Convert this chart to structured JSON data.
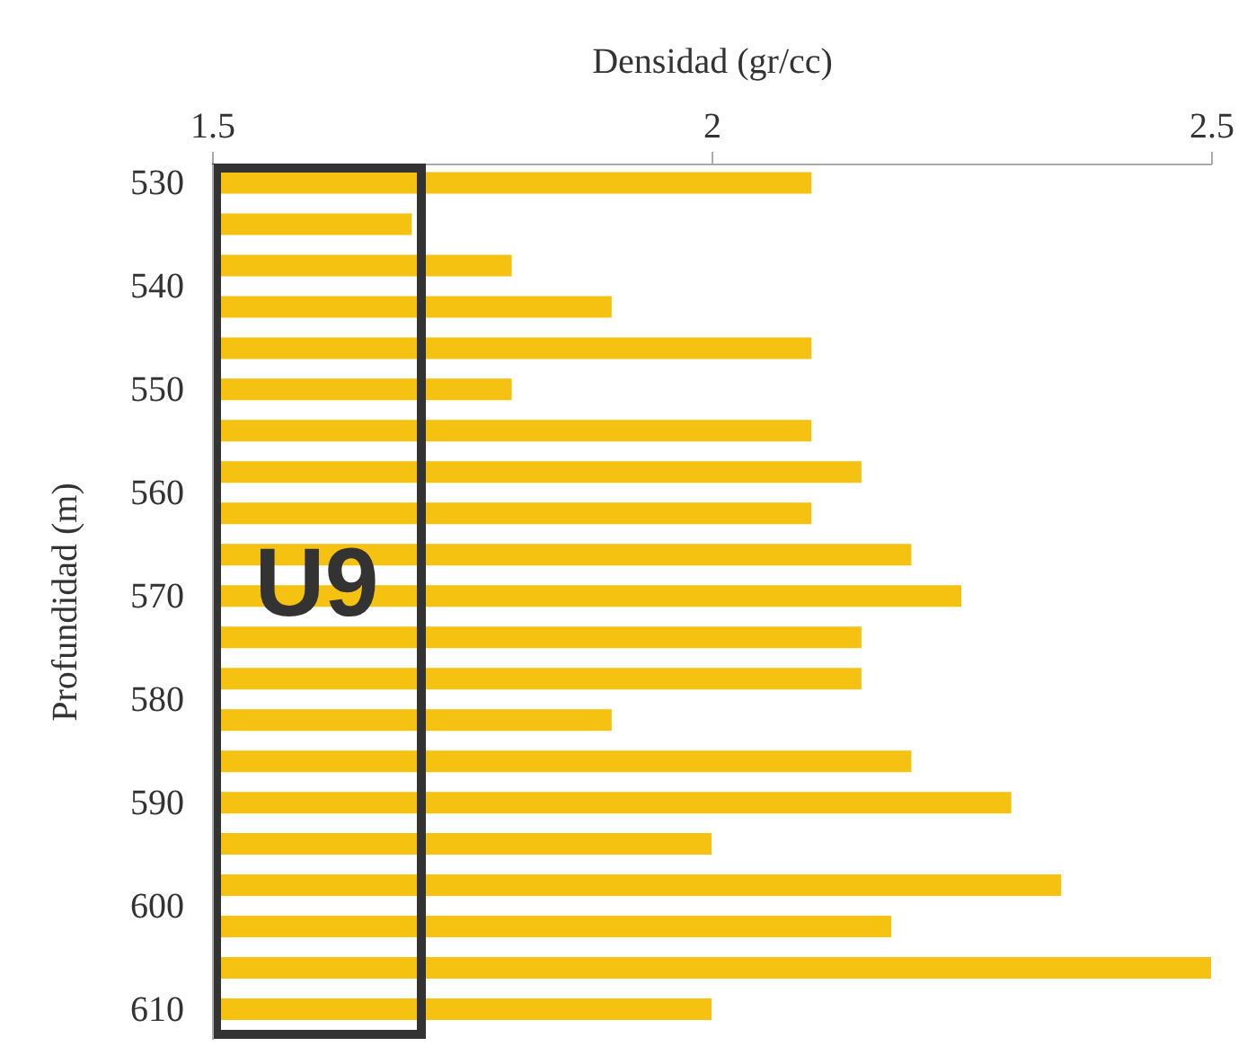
{
  "chart_data": {
    "type": "bar",
    "orientation": "horizontal",
    "xlabel": "Densidad (gr/cc)",
    "ylabel": "Profundidad (m)",
    "x": [
      530,
      534,
      538,
      542,
      546,
      550,
      554,
      558,
      562,
      566,
      570,
      574,
      578,
      582,
      586,
      590,
      594,
      598,
      602,
      606,
      610
    ],
    "values": [
      2.1,
      1.7,
      1.8,
      1.9,
      2.1,
      1.8,
      2.1,
      2.15,
      2.1,
      2.2,
      2.25,
      2.15,
      2.15,
      1.9,
      2.2,
      2.3,
      2.0,
      2.35,
      2.18,
      2.5,
      2.0
    ],
    "color": "#f5c211",
    "xlim": [
      1.5,
      2.5
    ],
    "xticks": [
      1.5,
      2,
      2.5
    ],
    "ylim": [
      612,
      529
    ],
    "yticks": [
      530,
      540,
      550,
      560,
      570,
      580,
      590,
      600,
      610
    ],
    "annotations": [
      "U9"
    ]
  }
}
